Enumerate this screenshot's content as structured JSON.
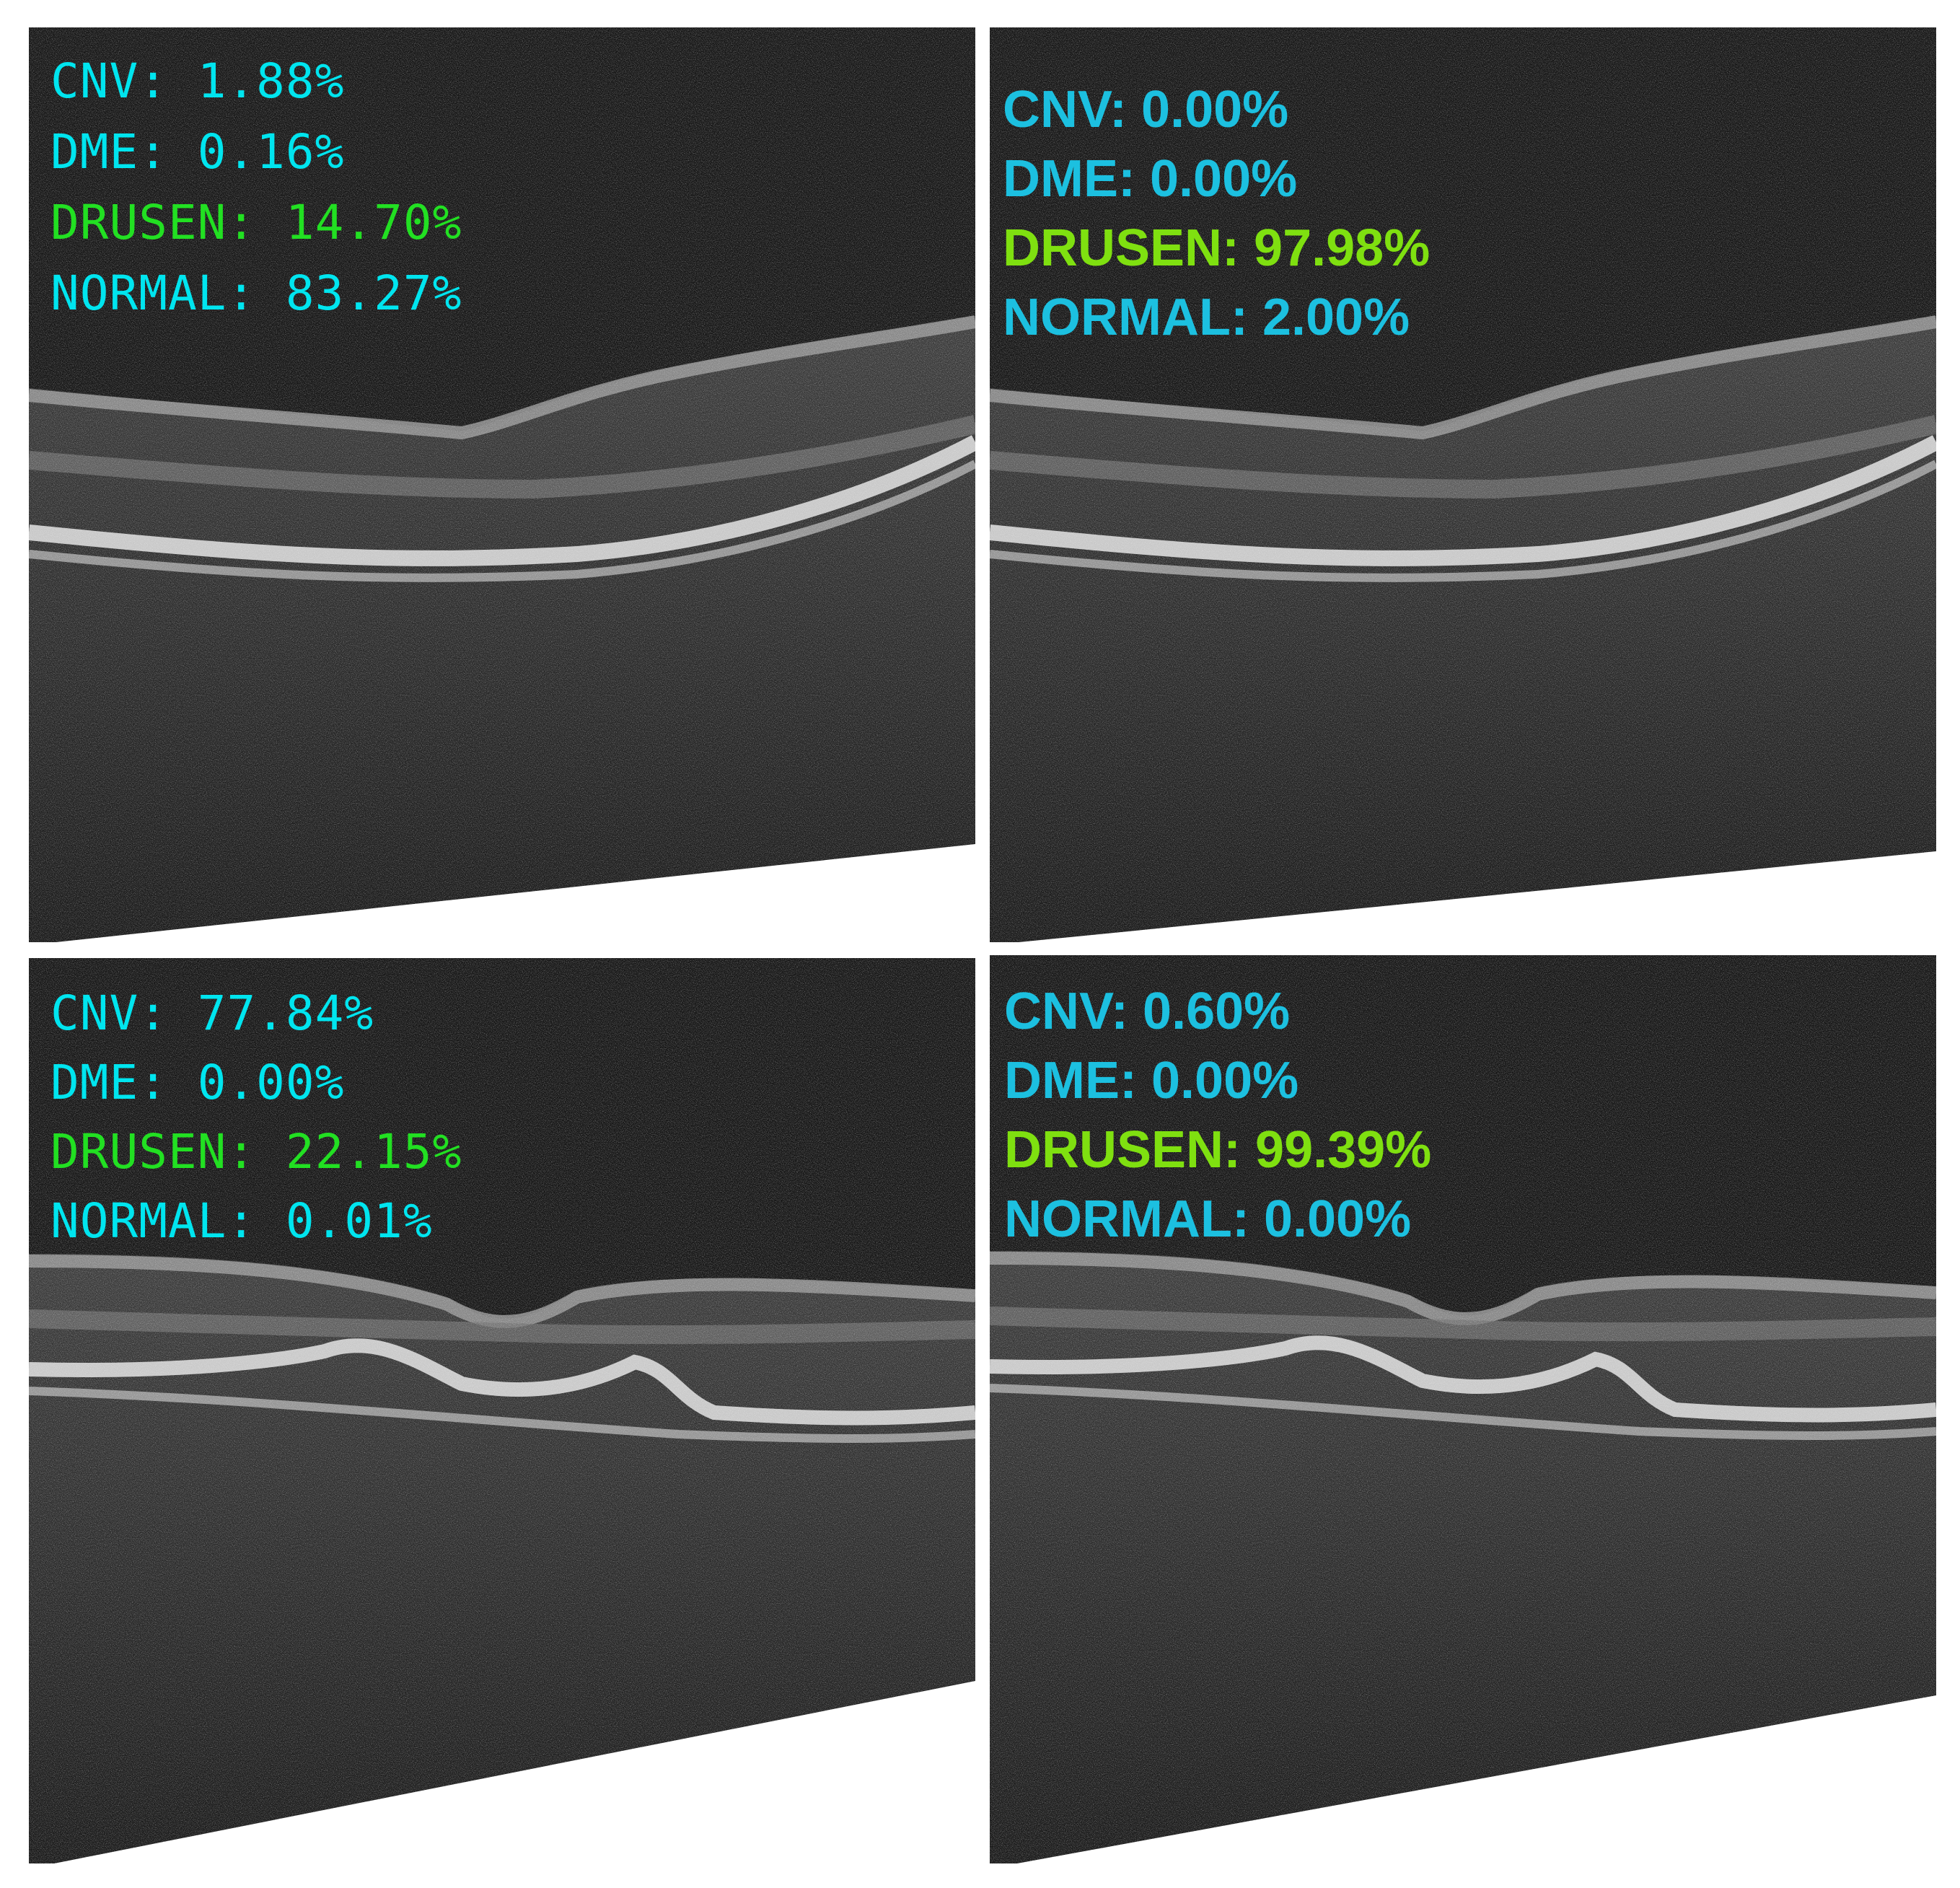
{
  "panels": [
    {
      "style": "cv",
      "variant": "normal",
      "predictions": [
        {
          "label": "CNV:",
          "value": "1.88%",
          "color": "#00e5ef"
        },
        {
          "label": "DME:",
          "value": "0.16%",
          "color": "#00e5ef"
        },
        {
          "label": "DRUSEN:",
          "value": "14.70%",
          "color": "#22e022"
        },
        {
          "label": "NORMAL:",
          "value": "83.27%",
          "color": "#00e5ef"
        }
      ]
    },
    {
      "style": "bold",
      "variant": "normal",
      "predictions": [
        {
          "label": "CNV:",
          "value": "0.00%",
          "color": "#1cc0e0"
        },
        {
          "label": "DME:",
          "value": "0.00%",
          "color": "#1cc0e0"
        },
        {
          "label": "DRUSEN:",
          "value": "97.98%",
          "color": "#7fe010"
        },
        {
          "label": "NORMAL:",
          "value": "2.00%",
          "color": "#1cc0e0"
        }
      ]
    },
    {
      "style": "cv",
      "variant": "drusen",
      "predictions": [
        {
          "label": "CNV:",
          "value": "77.84%",
          "color": "#00e5ef"
        },
        {
          "label": "DME:",
          "value": "0.00%",
          "color": "#00e5ef"
        },
        {
          "label": "DRUSEN:",
          "value": "22.15%",
          "color": "#22e022"
        },
        {
          "label": "NORMAL:",
          "value": "0.01%",
          "color": "#00e5ef"
        }
      ]
    },
    {
      "style": "bold",
      "variant": "drusen",
      "predictions": [
        {
          "label": "CNV:",
          "value": "0.60%",
          "color": "#1cc0e0"
        },
        {
          "label": "DME:",
          "value": "0.00%",
          "color": "#1cc0e0"
        },
        {
          "label": "DRUSEN:",
          "value": "99.39%",
          "color": "#7fe010"
        },
        {
          "label": "NORMAL:",
          "value": "0.00%",
          "color": "#1cc0e0"
        }
      ]
    }
  ]
}
